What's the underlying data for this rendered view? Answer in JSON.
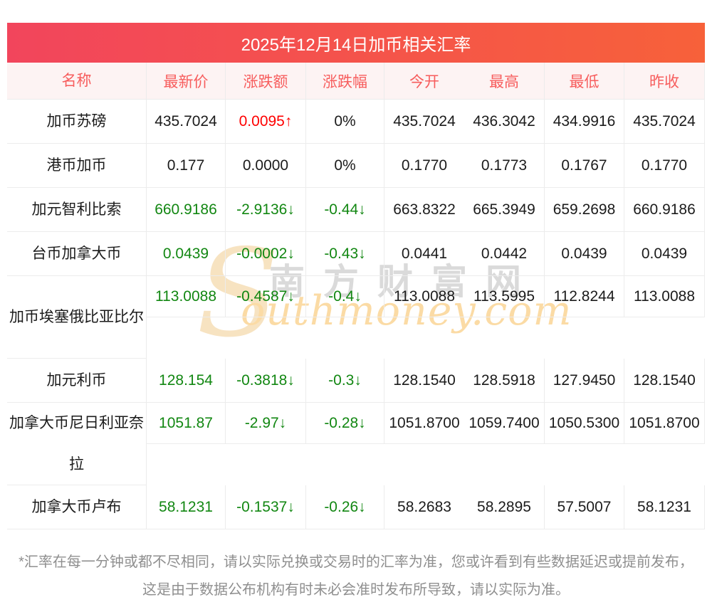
{
  "title": "2025年12月14日加币相关汇率",
  "table": {
    "columns": [
      "名称",
      "最新价",
      "涨跌额",
      "涨跌幅",
      "今开",
      "最高",
      "最低",
      "昨收"
    ],
    "rows": [
      {
        "name": "加币苏磅",
        "latest": "435.7024",
        "latest_trend": "flat",
        "change": "0.0095↑",
        "change_trend": "up",
        "pct": "0%",
        "pct_trend": "flat",
        "open": "435.7024",
        "high": "436.3042",
        "low": "434.9916",
        "prev": "435.7024"
      },
      {
        "name": "港币加币",
        "latest": "0.177",
        "latest_trend": "flat",
        "change": "0.0000",
        "change_trend": "flat",
        "pct": "0%",
        "pct_trend": "flat",
        "open": "0.1770",
        "high": "0.1773",
        "low": "0.1767",
        "prev": "0.1770"
      },
      {
        "name": "加元智利比索",
        "latest": "660.9186",
        "latest_trend": "down",
        "change": "-2.9136↓",
        "change_trend": "down",
        "pct": "-0.44↓",
        "pct_trend": "down",
        "open": "663.8322",
        "high": "665.3949",
        "low": "659.2698",
        "prev": "660.9186"
      },
      {
        "name": "台币加拿大币",
        "latest": "0.0439",
        "latest_trend": "down",
        "change": "-0.0002↓",
        "change_trend": "down",
        "pct": "-0.43↓",
        "pct_trend": "down",
        "open": "0.0441",
        "high": "0.0442",
        "low": "0.0439",
        "prev": "0.0439"
      },
      {
        "name": "加币埃塞俄比亚比尔",
        "latest": "113.0088",
        "latest_trend": "down",
        "change": "-0.4587↓",
        "change_trend": "down",
        "pct": "-0.4↓",
        "pct_trend": "down",
        "open": "113.0088",
        "high": "113.5995",
        "low": "112.8244",
        "prev": "113.0088"
      },
      {
        "name": "加元利币",
        "latest": "128.154",
        "latest_trend": "down",
        "change": "-0.3818↓",
        "change_trend": "down",
        "pct": "-0.3↓",
        "pct_trend": "down",
        "open": "128.1540",
        "high": "128.5918",
        "low": "127.9450",
        "prev": "128.1540"
      },
      {
        "name": "加拿大币尼日利亚奈拉",
        "latest": "1051.87",
        "latest_trend": "down",
        "change": "-2.97↓",
        "change_trend": "down",
        "pct": "-0.28↓",
        "pct_trend": "down",
        "open": "1051.8700",
        "high": "1059.7400",
        "low": "1050.5300",
        "prev": "1051.8700"
      },
      {
        "name": "加拿大币卢布",
        "latest": "58.1231",
        "latest_trend": "down",
        "change": "-0.1537↓",
        "change_trend": "down",
        "pct": "-0.26↓",
        "pct_trend": "down",
        "open": "58.2683",
        "high": "58.2895",
        "low": "57.5007",
        "prev": "58.1231"
      }
    ]
  },
  "watermark": {
    "s": "S",
    "cn": "南方财富网",
    "en": "outhmoney.com"
  },
  "footnote": "*汇率在每一分钟或都不尽相同，请以实际兑换或交易时的汇率为准，您或许看到有些数据延迟或提前发布，这是由于数据公布机构有时未必会准时发布所导致，请以实际为准。",
  "colors": {
    "title_gradient_left": "#f2455c",
    "title_gradient_right": "#f7613a",
    "title_text": "#ffffff",
    "column_header_bg": "#fdf3f3",
    "column_header_text": "#f75d5d",
    "up": "#ff0000",
    "down": "#128712",
    "neutral_text": "#1b1b1b",
    "border": "#ececec",
    "footnote_text": "#8f8f8f",
    "watermark_cn": "#d6d6d6",
    "watermark_en": "#fbdba5"
  }
}
